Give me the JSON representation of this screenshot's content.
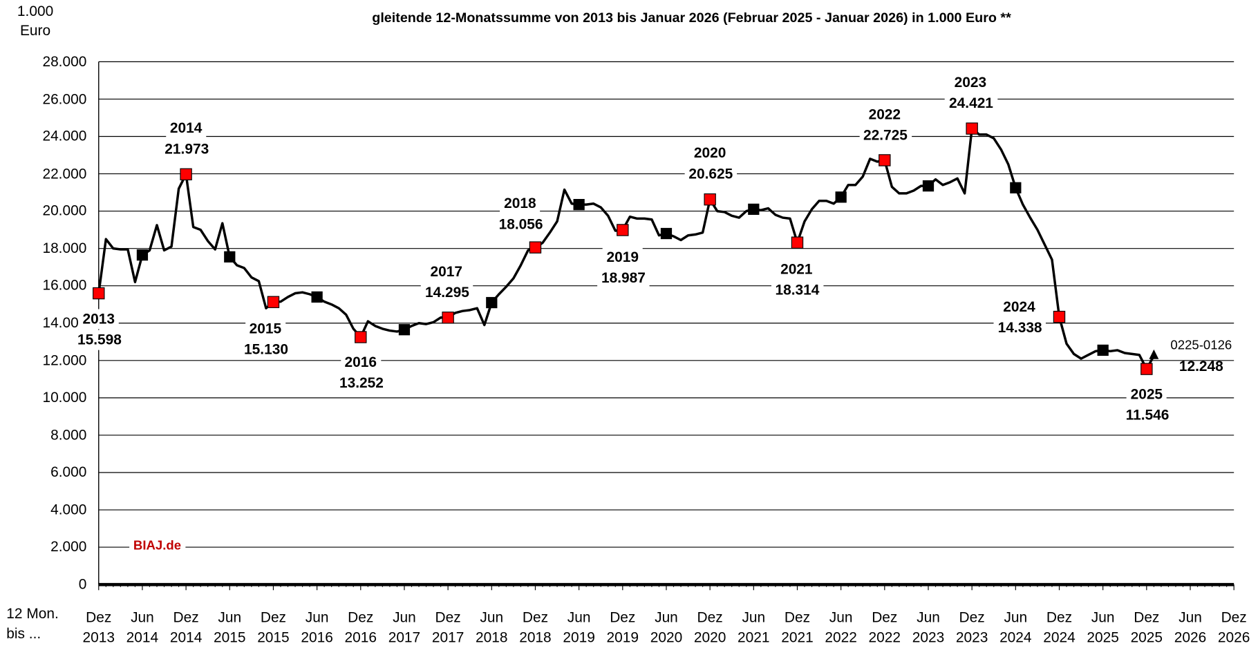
{
  "chart_data": {
    "type": "line",
    "title": "gleitende 12-Monatssumme von 2013 bis Januar 2026 (Februar 2025 - Januar 2026) in 1.000 Euro **",
    "ylabel": "1.000 Euro",
    "xlabel": "12 Mon. bis ...",
    "watermark": "BIAJ.de",
    "color": "#000000",
    "grid": true,
    "ylim": [
      0,
      28000
    ],
    "yticks": [
      0,
      {
        "value": 2000,
        "label": "2.000"
      },
      {
        "value": 4000,
        "label": "4.000"
      },
      {
        "value": 6000,
        "label": "6.000"
      },
      {
        "value": 8000,
        "label": "8.000"
      },
      {
        "value": 10000,
        "label": "10.000"
      },
      {
        "value": 12000,
        "label": "12.000"
      },
      {
        "value": 14000,
        "label": "14.000"
      },
      {
        "value": 16000,
        "label": "16.000"
      },
      {
        "value": 18000,
        "label": "18.000"
      },
      {
        "value": 20000,
        "label": "20.000"
      },
      {
        "value": 22000,
        "label": "22.000"
      },
      {
        "value": 24000,
        "label": "24.000"
      },
      {
        "value": 26000,
        "label": "26.000"
      },
      {
        "value": 28000,
        "label": "28.000"
      }
    ],
    "categories": [
      "Dez 2013",
      null,
      null,
      null,
      null,
      null,
      "Jun 2014",
      null,
      null,
      null,
      null,
      null,
      "Dez 2014",
      null,
      null,
      null,
      null,
      null,
      "Jun 2015",
      null,
      null,
      null,
      null,
      null,
      "Dez 2015",
      null,
      null,
      null,
      null,
      null,
      "Jun 2016",
      null,
      null,
      null,
      null,
      null,
      "Dez 2016",
      null,
      null,
      null,
      null,
      null,
      "Jun 2017",
      null,
      null,
      null,
      null,
      null,
      "Dez 2017",
      null,
      null,
      null,
      null,
      null,
      "Jun 2018",
      null,
      null,
      null,
      null,
      null,
      "Dez 2018",
      null,
      null,
      null,
      null,
      null,
      "Jun 2019",
      null,
      null,
      null,
      null,
      null,
      "Dez 2019",
      null,
      null,
      null,
      null,
      null,
      "Jun 2020",
      null,
      null,
      null,
      null,
      null,
      "Dez 2020",
      null,
      null,
      null,
      null,
      null,
      "Jun 2021",
      null,
      null,
      null,
      null,
      null,
      "Dez 2021",
      null,
      null,
      null,
      null,
      null,
      "Jun 2022",
      null,
      null,
      null,
      null,
      null,
      "Dez 2022",
      null,
      null,
      null,
      null,
      null,
      "Jun 2023",
      null,
      null,
      null,
      null,
      null,
      "Dez 2023",
      null,
      null,
      null,
      null,
      null,
      "Jun 2024",
      null,
      null,
      null,
      null,
      null,
      "Dez 2024",
      null,
      null,
      null,
      null,
      null,
      "Jun 2025",
      null,
      null,
      null,
      null,
      null,
      "Dez 2025",
      null,
      null,
      null,
      null,
      null,
      "Jun 2026",
      null,
      null,
      null,
      null,
      null,
      "Dez 2026"
    ],
    "values": [
      15598,
      18500,
      18000,
      17950,
      17950,
      16200,
      17650,
      17900,
      19250,
      17900,
      18100,
      21200,
      21973,
      19150,
      19000,
      18400,
      17950,
      19350,
      17550,
      17100,
      16950,
      16450,
      16250,
      14800,
      15130,
      15150,
      15400,
      15600,
      15650,
      15550,
      15400,
      15150,
      15000,
      14800,
      14450,
      13700,
      13252,
      14100,
      13850,
      13700,
      13600,
      13550,
      13650,
      13850,
      14000,
      13950,
      14050,
      14300,
      14295,
      14550,
      14650,
      14700,
      14800,
      13900,
      15100,
      15550,
      15950,
      16400,
      17100,
      17900,
      18056,
      18300,
      18850,
      19450,
      21150,
      20400,
      20350,
      20350,
      20400,
      20200,
      19750,
      18950,
      18987,
      19700,
      19600,
      19600,
      19550,
      18700,
      18800,
      18650,
      18450,
      18700,
      18750,
      18850,
      20625,
      20000,
      19950,
      19750,
      19650,
      20000,
      20100,
      20050,
      20150,
      19800,
      19650,
      19600,
      18314,
      19450,
      20100,
      20550,
      20550,
      20400,
      20750,
      21400,
      21400,
      21850,
      22800,
      22650,
      22725,
      21300,
      20950,
      20950,
      21100,
      21350,
      21350,
      21700,
      21400,
      21550,
      21750,
      20950,
      24421,
      24100,
      24100,
      23900,
      23300,
      22500,
      21250,
      20350,
      19650,
      19000,
      18200,
      17400,
      14338,
      12900,
      12350,
      12100,
      12300,
      12500,
      12550,
      12500,
      12550,
      12400,
      12350,
      12300,
      11546,
      12248,
      null,
      null,
      null,
      null,
      null,
      null,
      null,
      null,
      null,
      null,
      null
    ],
    "value_labels": [
      "15.598",
      null,
      null,
      null,
      null,
      null,
      null,
      null,
      null,
      null,
      null,
      null,
      "21.973",
      null,
      null,
      null,
      null,
      null,
      null,
      null,
      null,
      null,
      null,
      null,
      "15.130",
      null,
      null,
      null,
      null,
      null,
      null,
      null,
      null,
      null,
      null,
      null,
      "13.252",
      null,
      null,
      null,
      null,
      null,
      null,
      null,
      null,
      null,
      null,
      null,
      "14.295",
      null,
      null,
      null,
      null,
      null,
      null,
      null,
      null,
      null,
      null,
      null,
      "18.056",
      null,
      null,
      null,
      null,
      null,
      null,
      null,
      null,
      null,
      null,
      null,
      "18.987",
      null,
      null,
      null,
      null,
      null,
      null,
      null,
      null,
      null,
      null,
      null,
      "20.625",
      null,
      null,
      null,
      null,
      null,
      null,
      null,
      null,
      null,
      null,
      null,
      "18.314",
      null,
      null,
      null,
      null,
      null,
      null,
      null,
      null,
      null,
      null,
      null,
      "22.725",
      null,
      null,
      null,
      null,
      null,
      null,
      null,
      null,
      null,
      null,
      null,
      "24.421",
      null,
      null,
      null,
      null,
      null,
      null,
      null,
      null,
      null,
      null,
      null,
      "14.338",
      null,
      null,
      null,
      null,
      null,
      null,
      null,
      null,
      null,
      null,
      null,
      "11.546",
      "12.248",
      null,
      null,
      null,
      null,
      null,
      null,
      null,
      null,
      null,
      null,
      null
    ],
    "year_labels": [
      "2013",
      "2014",
      "2015",
      "2016",
      "2017",
      "2018",
      "2019",
      "2020",
      "2021",
      "2022",
      "2023",
      "2024",
      "2025"
    ],
    "end_label": "0225-0126"
  }
}
